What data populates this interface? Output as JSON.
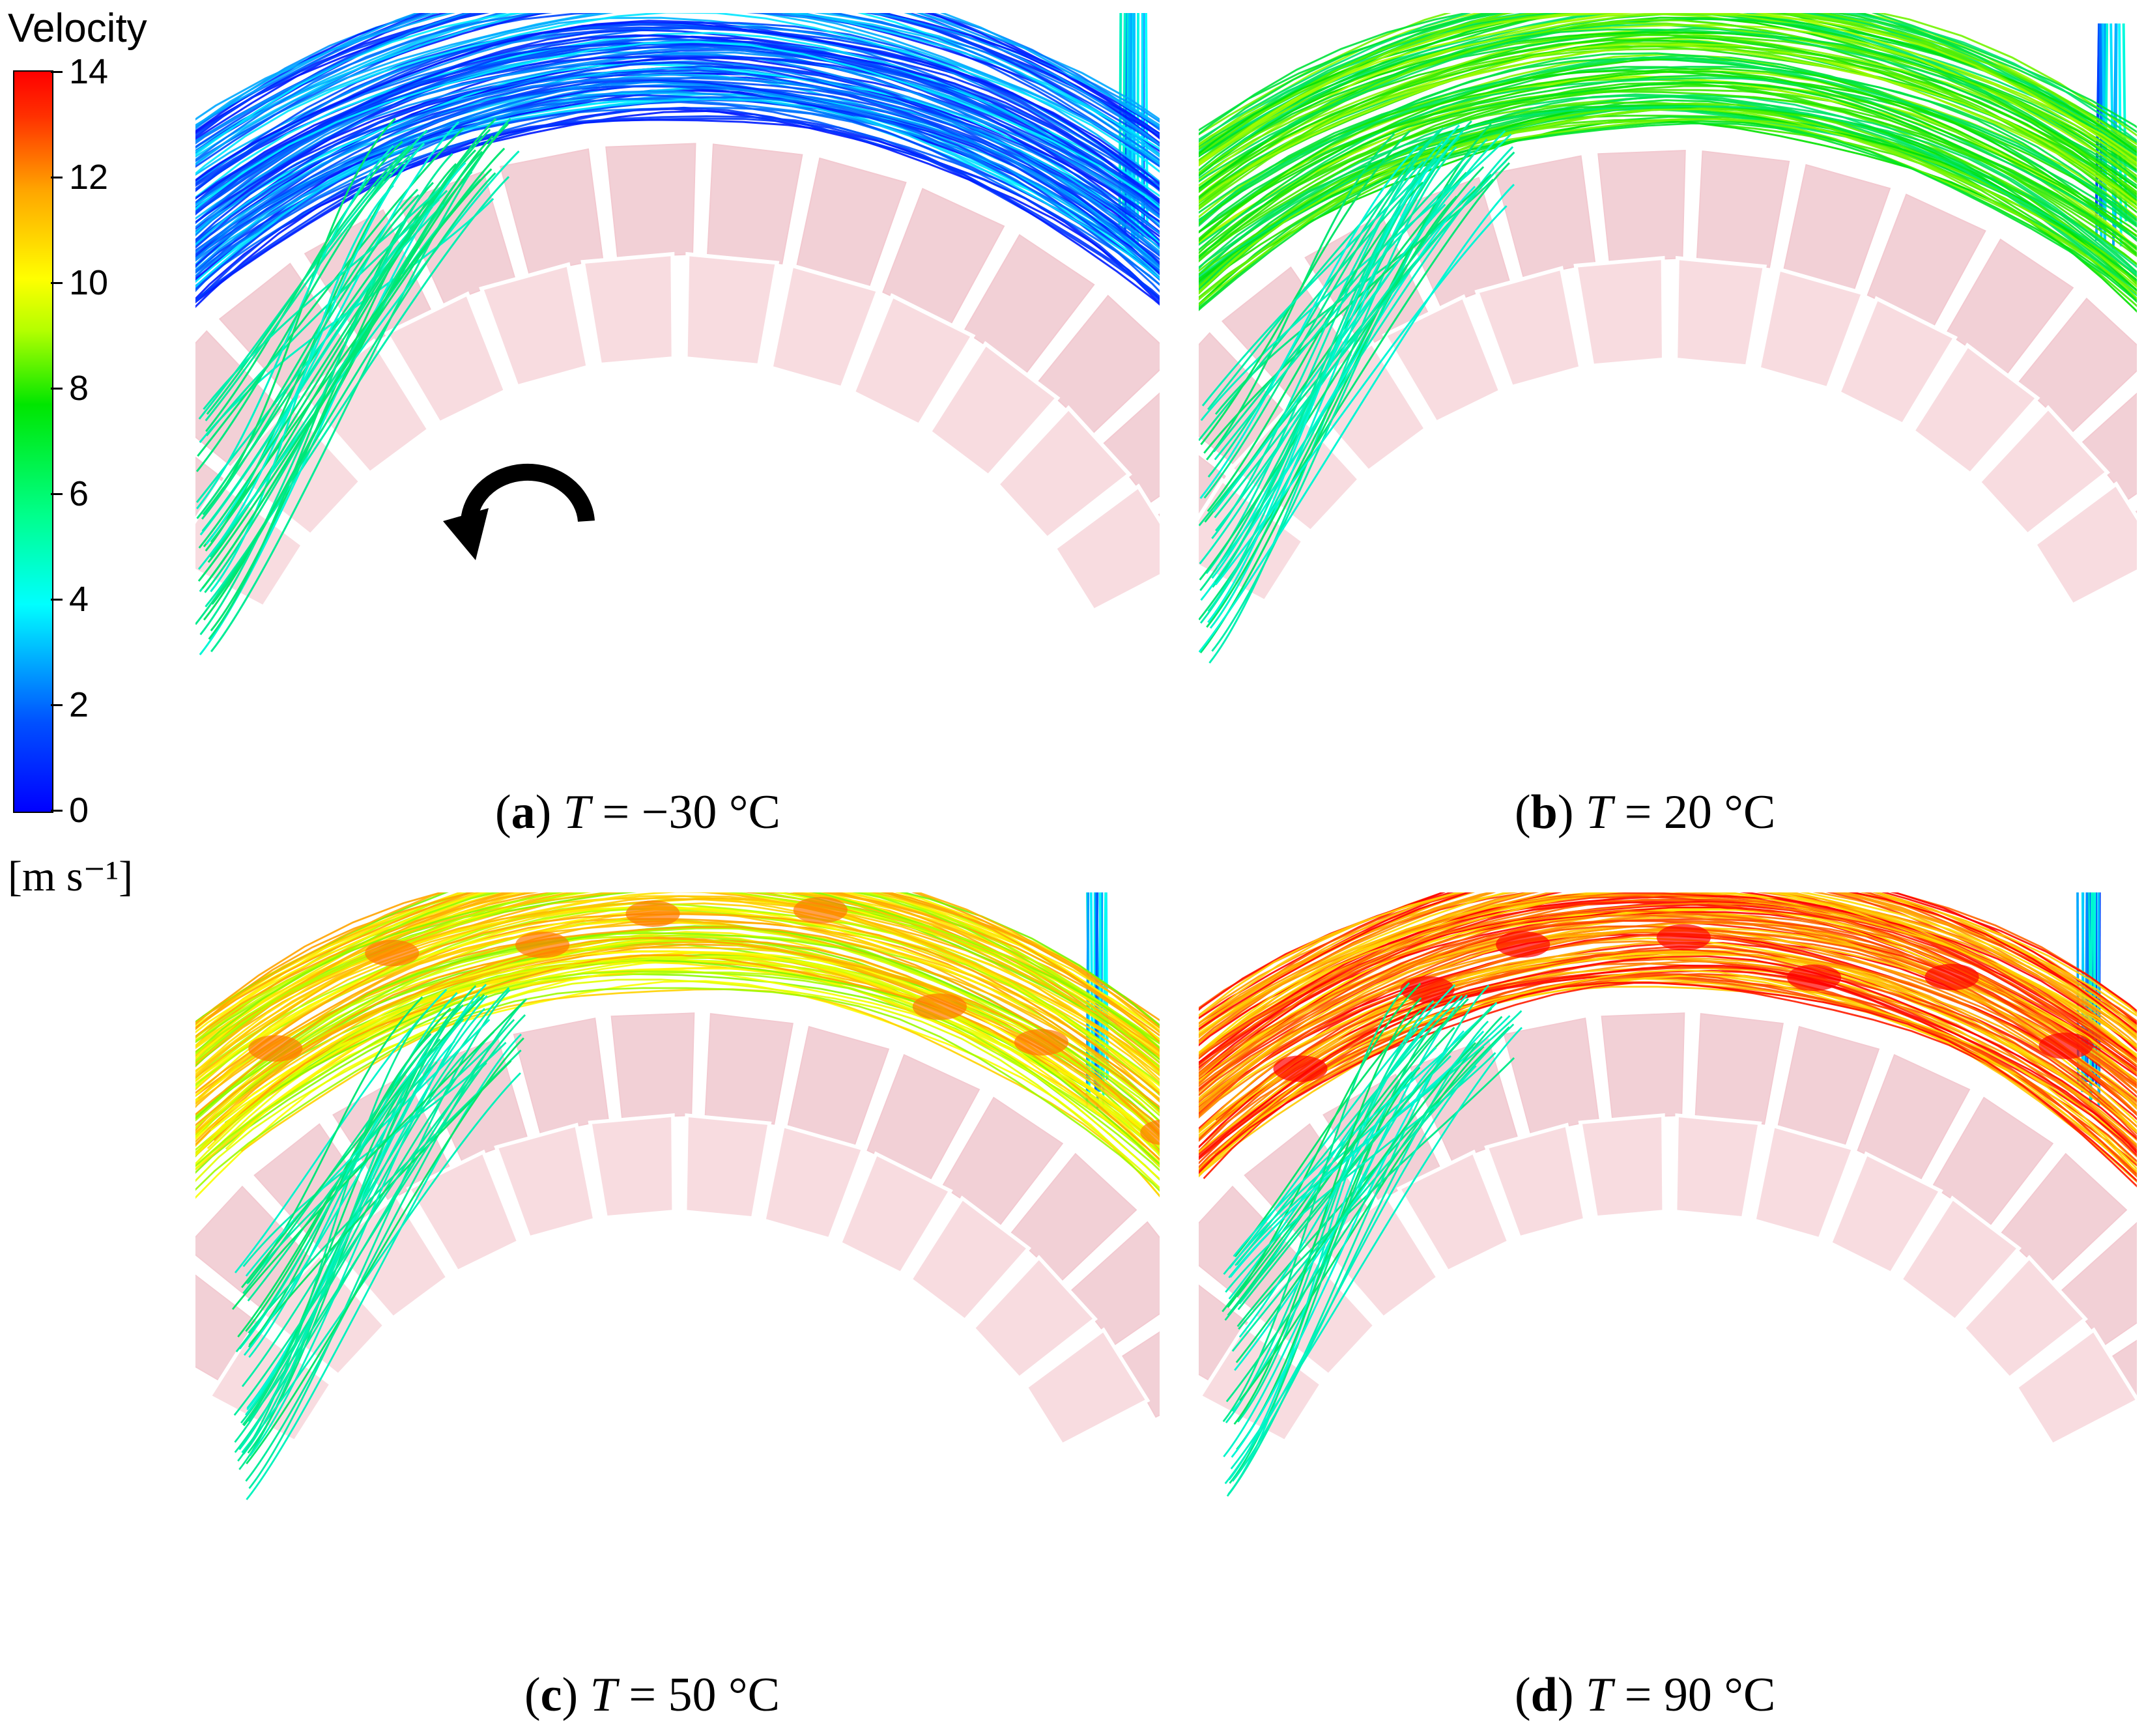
{
  "legend": {
    "title": "Velocity",
    "ticks": [
      "14",
      "12",
      "10",
      "8",
      "6",
      "4",
      "2",
      "0"
    ],
    "unit": "[m s⁻¹]",
    "colors": [
      "#0000ff",
      "#00ffff",
      "#00e600",
      "#ffff00",
      "#ff0000"
    ]
  },
  "panels": [
    {
      "id": "a",
      "prefix": "(",
      "letter": "a",
      "suffix": ")",
      "var": "T",
      "eq": " = −30 °C",
      "speed_level": 0.15,
      "rotation_arrow": true
    },
    {
      "id": "b",
      "prefix": "(",
      "letter": "b",
      "suffix": ")",
      "var": "T",
      "eq": " = 20 °C",
      "speed_level": 0.55,
      "rotation_arrow": false
    },
    {
      "id": "c",
      "prefix": "(",
      "letter": "c",
      "suffix": ")",
      "var": "T",
      "eq": " = 50 °C",
      "speed_level": 0.75,
      "rotation_arrow": false
    },
    {
      "id": "d",
      "prefix": "(",
      "letter": "d",
      "suffix": ")",
      "var": "T",
      "eq": " = 90 °C",
      "speed_level": 0.9,
      "rotation_arrow": false
    }
  ]
}
